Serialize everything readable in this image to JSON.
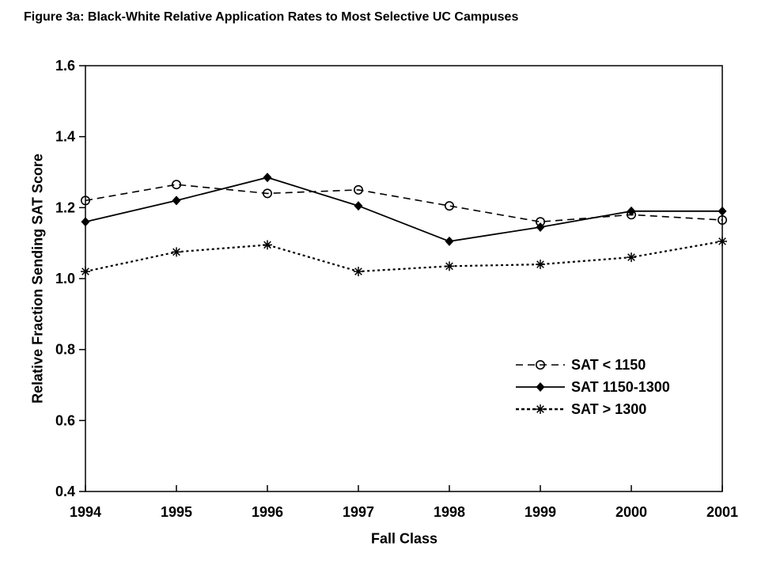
{
  "chart_data": {
    "type": "line",
    "title": "Figure 3a: Black-White Relative Application Rates to Most Selective UC Campuses",
    "x": [
      1994,
      1995,
      1996,
      1997,
      1998,
      1999,
      2000,
      2001
    ],
    "xlabel": "Fall Class",
    "ylabel": "Relative Fraction Sending SAT Score",
    "ylim": [
      0.4,
      1.6
    ],
    "y_ticks": [
      0.4,
      0.6,
      0.8,
      1.0,
      1.2,
      1.4,
      1.6
    ],
    "grid": false,
    "legend_position": "inside-right",
    "series": [
      {
        "name": "SAT < 1150",
        "line": "dashed",
        "marker": "open-circle",
        "values": [
          1.22,
          1.265,
          1.24,
          1.25,
          1.205,
          1.16,
          1.18,
          1.165
        ]
      },
      {
        "name": "SAT 1150-1300",
        "line": "solid",
        "marker": "filled-diamond",
        "values": [
          1.16,
          1.22,
          1.285,
          1.205,
          1.105,
          1.145,
          1.19,
          1.19
        ]
      },
      {
        "name": "SAT > 1300",
        "line": "bold-dotted",
        "marker": "asterisk",
        "values": [
          1.02,
          1.075,
          1.095,
          1.02,
          1.035,
          1.04,
          1.06,
          1.105
        ]
      }
    ]
  },
  "colors": {
    "line": "#000000",
    "text": "#000000",
    "background": "#ffffff"
  }
}
